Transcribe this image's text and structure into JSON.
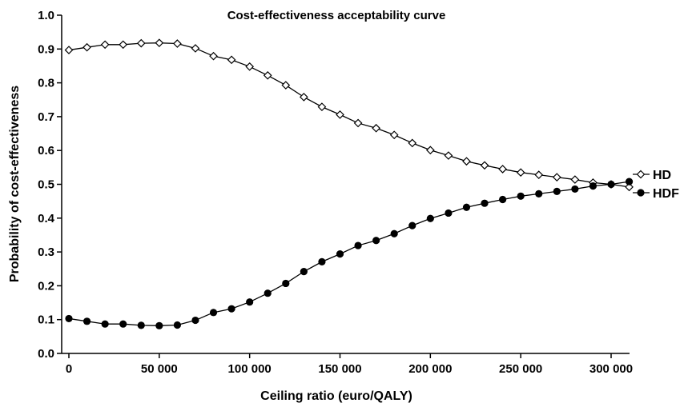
{
  "chart_data": {
    "type": "line",
    "title": "Cost-effectiveness acceptability curve",
    "xlabel": "Ceiling ratio (euro/QALY)",
    "ylabel": "Probability of cost-effectiveness",
    "xlim": [
      0,
      320000
    ],
    "ylim": [
      0.0,
      1.0
    ],
    "x_ticks": [
      0,
      50000,
      100000,
      150000,
      200000,
      250000,
      300000
    ],
    "x_tick_labels": [
      "0",
      "50 000",
      "100 000",
      "150 000",
      "200 000",
      "250 000",
      "300 000"
    ],
    "y_ticks": [
      0.0,
      0.1,
      0.2,
      0.3,
      0.4,
      0.5,
      0.6,
      0.7,
      0.8,
      0.9,
      1.0
    ],
    "y_tick_labels": [
      "0.0",
      "0.1",
      "0.2",
      "0.3",
      "0.4",
      "0.5",
      "0.6",
      "0.7",
      "0.8",
      "0.9",
      "1.0"
    ],
    "grid": false,
    "legend_position": "right",
    "x": [
      0,
      10000,
      20000,
      30000,
      40000,
      50000,
      60000,
      70000,
      80000,
      90000,
      100000,
      110000,
      120000,
      130000,
      140000,
      150000,
      160000,
      170000,
      180000,
      190000,
      200000,
      210000,
      220000,
      230000,
      240000,
      250000,
      260000,
      270000,
      280000,
      290000,
      300000,
      310000
    ],
    "series": [
      {
        "name": "HD",
        "marker": "open-diamond",
        "color": "#000000",
        "values": [
          0.897,
          0.905,
          0.913,
          0.913,
          0.917,
          0.918,
          0.916,
          0.902,
          0.879,
          0.868,
          0.848,
          0.822,
          0.793,
          0.758,
          0.729,
          0.706,
          0.681,
          0.666,
          0.646,
          0.622,
          0.601,
          0.585,
          0.568,
          0.556,
          0.545,
          0.535,
          0.528,
          0.521,
          0.514,
          0.505,
          0.5,
          0.492
        ]
      },
      {
        "name": "HDF",
        "marker": "filled-circle",
        "color": "#000000",
        "values": [
          0.103,
          0.095,
          0.087,
          0.087,
          0.083,
          0.082,
          0.084,
          0.098,
          0.121,
          0.132,
          0.152,
          0.178,
          0.207,
          0.242,
          0.271,
          0.294,
          0.319,
          0.334,
          0.354,
          0.378,
          0.399,
          0.415,
          0.432,
          0.444,
          0.455,
          0.465,
          0.472,
          0.479,
          0.486,
          0.495,
          0.5,
          0.508
        ]
      }
    ]
  }
}
